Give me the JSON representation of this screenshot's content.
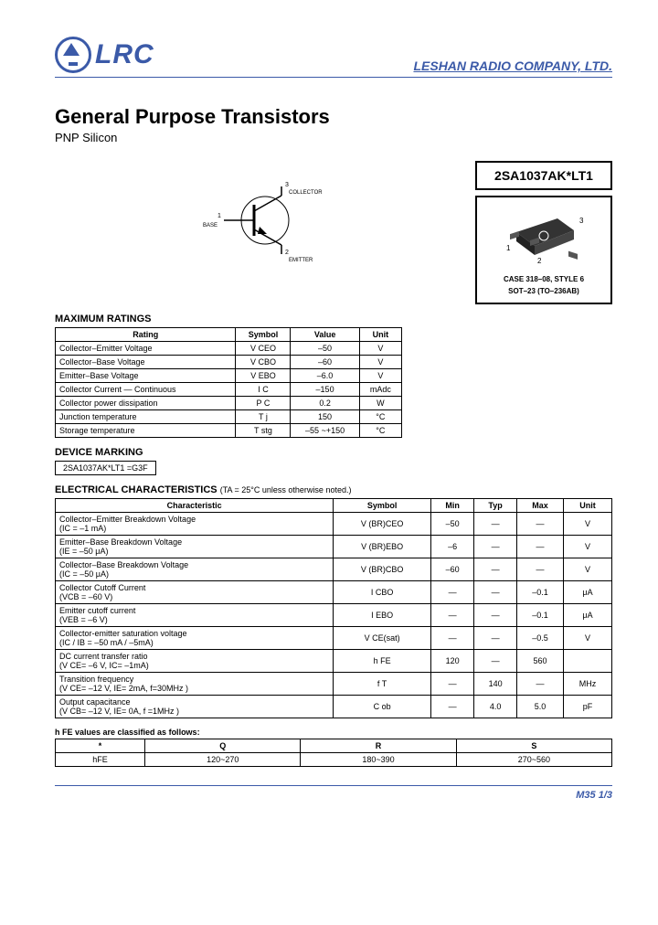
{
  "header": {
    "logo_text": "LRC",
    "company": "LESHAN RADIO COMPANY, LTD."
  },
  "title": "General Purpose Transistors",
  "subtitle": "PNP Silicon",
  "diagram": {
    "pin1": "BASE",
    "pin2": "EMITTER",
    "pin3": "COLLECTOR",
    "n1": "1",
    "n2": "2",
    "n3": "3"
  },
  "part_number": "2SA1037AK*LT1",
  "package": {
    "pin1": "1",
    "pin2": "2",
    "pin3": "3",
    "line1": "CASE 318–08, STYLE 6",
    "line2": "SOT–23 (TO–236AB)"
  },
  "ratings": {
    "heading": "MAXIMUM RATINGS",
    "cols": [
      "Rating",
      "Symbol",
      "Value",
      "Unit"
    ],
    "rows": [
      [
        "Collector–Emitter Voltage",
        "V CEO",
        "–50",
        "V"
      ],
      [
        "Collector–Base Voltage",
        "V CBO",
        "–60",
        "V"
      ],
      [
        "Emitter–Base Voltage",
        "V EBO",
        "–6.0",
        "V"
      ],
      [
        "Collector Current — Continuous",
        "I C",
        "–150",
        "mAdc"
      ],
      [
        "Collector power dissipation",
        "P C",
        "0.2",
        "W"
      ],
      [
        "Junction temperature",
        "T j",
        "150",
        "°C"
      ],
      [
        "Storage temperature",
        "T stg",
        "–55 ~+150",
        "°C"
      ]
    ]
  },
  "marking": {
    "heading": "DEVICE MARKING",
    "text": "2SA1037AK*LT1 =G3F"
  },
  "characteristics": {
    "heading": "ELECTRICAL CHARACTERISTICS",
    "note": "(TA = 25°C unless otherwise noted.)",
    "cols": [
      "Characteristic",
      "Symbol",
      "Min",
      "Typ",
      "Max",
      "Unit"
    ],
    "rows": [
      [
        "Collector–Emitter Breakdown Voltage\n(IC = –1 mA)",
        "V (BR)CEO",
        "–50",
        "—",
        "—",
        "V"
      ],
      [
        "Emitter–Base Breakdown Voltage\n(IE = –50 μA)",
        "V (BR)EBO",
        "–6",
        "—",
        "—",
        "V"
      ],
      [
        "Collector–Base Breakdown Voltage\n(IC = –50 μA)",
        "V (BR)CBO",
        "–60",
        "—",
        "—",
        "V"
      ],
      [
        "Collector Cutoff Current\n(VCB = –60 V)",
        "I CBO",
        "—",
        "—",
        "–0.1",
        "μA"
      ],
      [
        "Emitter cutoff current\n(VEB = –6 V)",
        "I EBO",
        "—",
        "—",
        "–0.1",
        "μA"
      ],
      [
        "Collector-emitter saturation voltage\n(IC / IB = –50 mA / –5mA)",
        "V CE(sat)",
        "—",
        "—",
        "–0.5",
        "V"
      ],
      [
        "DC current transfer ratio\n(V CE= –6 V, IC= –1mA)",
        "h FE",
        "120",
        "—",
        "560",
        ""
      ],
      [
        "Transition frequency\n(V CE= –12 V, IE= 2mA, f=30MHz )",
        "f T",
        "—",
        "140",
        "—",
        "MHz"
      ],
      [
        "Output capacitance\n(V CB= –12 V, IE= 0A, f =1MHz )",
        "C ob",
        "—",
        "4.0",
        "5.0",
        "pF"
      ]
    ]
  },
  "hfe": {
    "caption": "h FE values are classified as follows:",
    "cols": [
      "*",
      "Q",
      "R",
      "S"
    ],
    "rows": [
      [
        "hFE",
        "120~270",
        "180~390",
        "270~560"
      ]
    ]
  },
  "footer": "M35  1/3"
}
